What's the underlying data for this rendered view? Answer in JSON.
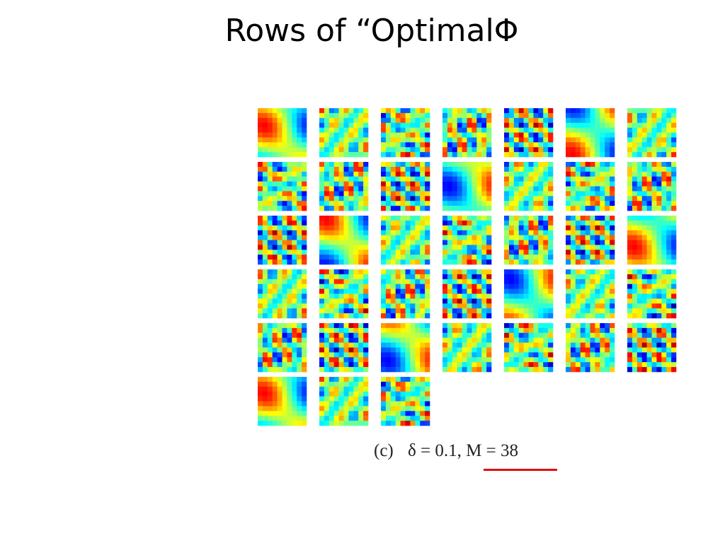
{
  "header": {
    "title": "Rows of “OptimalΦ"
  },
  "figure": {
    "label": "(c)",
    "caption": "δ = 0.1, M = 38"
  }
}
